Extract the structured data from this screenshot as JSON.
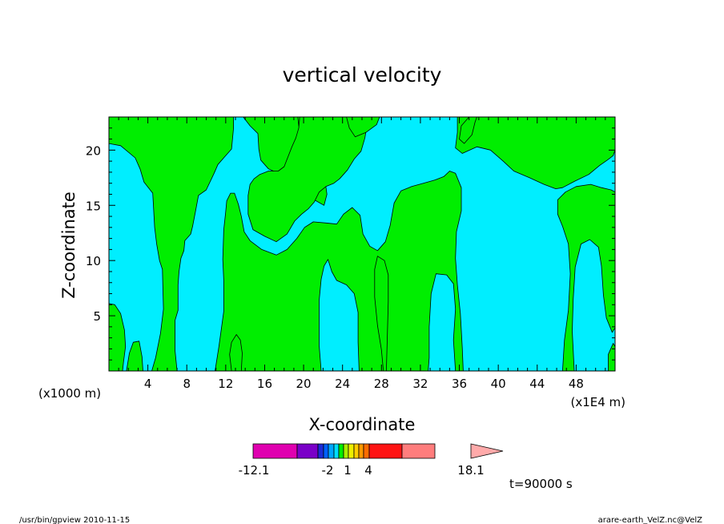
{
  "chart_data": {
    "type": "heatmap",
    "title": "vertical velocity",
    "xlabel": "X-coordinate",
    "ylabel": "Z-coordinate",
    "x_scale_label": "(x1000 m)",
    "x_unit_label": "(x1E4 m)",
    "xlim": [
      0,
      52
    ],
    "ylim": [
      0,
      23
    ],
    "x_ticks": [
      "4",
      "8",
      "12",
      "16",
      "20",
      "24",
      "28",
      "32",
      "36",
      "40",
      "44",
      "48"
    ],
    "y_ticks": [
      "5",
      "10",
      "15",
      "20"
    ],
    "x_tick_values": [
      4,
      8,
      12,
      16,
      20,
      24,
      28,
      32,
      36,
      40,
      44,
      48
    ],
    "y_tick_values": [
      5,
      10,
      15,
      20
    ],
    "background_color": "#00eeff",
    "region_color": "#00ee00",
    "regions": [
      {
        "name": "positive",
        "points": [
          [
            0,
            23
          ],
          [
            0,
            20.6
          ],
          [
            1.2,
            20.4
          ],
          [
            2.7,
            19.3
          ],
          [
            3.2,
            18.3
          ],
          [
            3.6,
            17.1
          ],
          [
            4.5,
            16.1
          ],
          [
            4.7,
            13.0
          ],
          [
            4.9,
            11.5
          ],
          [
            5.2,
            10.0
          ],
          [
            5.5,
            9.2
          ],
          [
            5.6,
            5.6
          ],
          [
            5.3,
            3.4
          ],
          [
            4.8,
            1.2
          ],
          [
            4.4,
            0
          ],
          [
            7.0,
            0
          ],
          [
            6.8,
            1.8
          ],
          [
            6.8,
            4.6
          ],
          [
            7.1,
            5.5
          ],
          [
            7.1,
            7.8
          ],
          [
            7.2,
            9.0
          ],
          [
            7.4,
            10.2
          ],
          [
            7.7,
            10.9
          ],
          [
            7.8,
            11.8
          ],
          [
            8.4,
            12.4
          ],
          [
            8.6,
            13.1
          ],
          [
            8.9,
            14.5
          ],
          [
            9.2,
            15.9
          ],
          [
            10.0,
            16.4
          ],
          [
            10.8,
            17.9
          ],
          [
            11.2,
            18.7
          ],
          [
            11.9,
            19.4
          ],
          [
            12.6,
            20.1
          ],
          [
            12.8,
            22.0
          ],
          [
            12.8,
            23.0
          ]
        ]
      },
      {
        "name": "positive",
        "points": [
          [
            13.8,
            23
          ],
          [
            14.5,
            22.2
          ],
          [
            15.3,
            21.5
          ],
          [
            15.4,
            20.1
          ],
          [
            15.6,
            19.1
          ],
          [
            16.4,
            18.3
          ],
          [
            17.4,
            17.9
          ],
          [
            18.7,
            17.3
          ],
          [
            19.9,
            16.6
          ],
          [
            20.9,
            15.6
          ],
          [
            22.1,
            15.0
          ],
          [
            22.4,
            16.0
          ],
          [
            22.2,
            17.3
          ],
          [
            21.9,
            18.4
          ],
          [
            21.6,
            19.5
          ],
          [
            21.5,
            20.8
          ],
          [
            21.2,
            22.1
          ],
          [
            21.0,
            23
          ]
        ]
      },
      {
        "name": "positive",
        "points": [
          [
            19.4,
            23
          ],
          [
            19.5,
            22.2
          ],
          [
            20.0,
            21.0
          ],
          [
            20.8,
            20.2
          ],
          [
            21.5,
            19.6
          ],
          [
            21.8,
            19.0
          ],
          [
            22.1,
            18.4
          ],
          [
            22.6,
            19.2
          ],
          [
            23.1,
            20.2
          ],
          [
            23.6,
            21.2
          ],
          [
            24.0,
            22.3
          ],
          [
            24.2,
            23
          ]
        ]
      },
      {
        "name": "positive",
        "points": [
          [
            26.4,
            23
          ],
          [
            26.5,
            22.2
          ],
          [
            26.3,
            21.1
          ],
          [
            25.9,
            19.9
          ],
          [
            25.2,
            19.2
          ],
          [
            24.5,
            18.2
          ],
          [
            23.7,
            17.4
          ],
          [
            23.1,
            17.0
          ],
          [
            22.3,
            16.7
          ],
          [
            21.6,
            16.2
          ],
          [
            21.1,
            15.3
          ],
          [
            20.5,
            14.7
          ],
          [
            19.8,
            14.2
          ],
          [
            19.1,
            13.6
          ],
          [
            18.3,
            12.4
          ],
          [
            17.2,
            11.7
          ],
          [
            16.0,
            12.2
          ],
          [
            14.8,
            12.8
          ],
          [
            14.3,
            14.2
          ],
          [
            14.3,
            15.9
          ],
          [
            14.5,
            16.9
          ],
          [
            14.9,
            17.4
          ],
          [
            15.5,
            17.8
          ],
          [
            16.4,
            18.1
          ],
          [
            17.4,
            18.1
          ],
          [
            18.0,
            18.5
          ],
          [
            18.8,
            20.3
          ],
          [
            19.2,
            21.1
          ],
          [
            19.5,
            22.0
          ],
          [
            19.6,
            23
          ]
        ]
      },
      {
        "name": "positive",
        "points": [
          [
            24.4,
            23
          ],
          [
            24.7,
            22.0
          ],
          [
            25.3,
            21.2
          ],
          [
            26.4,
            21.6
          ],
          [
            27.5,
            22.3
          ],
          [
            27.8,
            23
          ]
        ]
      },
      {
        "name": "positive",
        "points": [
          [
            35.8,
            23
          ],
          [
            35.8,
            21.6
          ],
          [
            35.6,
            20.2
          ],
          [
            36.3,
            19.7
          ],
          [
            37.8,
            20.3
          ],
          [
            39.2,
            20.0
          ],
          [
            40.5,
            19.0
          ],
          [
            41.6,
            18.1
          ],
          [
            43.2,
            17.5
          ],
          [
            44.7,
            16.9
          ],
          [
            45.9,
            16.5
          ],
          [
            46.6,
            16.6
          ],
          [
            47.9,
            17.2
          ],
          [
            49.3,
            17.8
          ],
          [
            50.4,
            18.6
          ],
          [
            51.2,
            19.1
          ],
          [
            51.8,
            19.5
          ],
          [
            52,
            20.0
          ],
          [
            52,
            23
          ]
        ]
      },
      {
        "name": "positive",
        "points": [
          [
            10.9,
            0
          ],
          [
            11.3,
            2.2
          ],
          [
            11.8,
            5.4
          ],
          [
            11.8,
            8.2
          ],
          [
            11.7,
            10.1
          ],
          [
            11.8,
            12.8
          ],
          [
            12.0,
            14.4
          ],
          [
            12.1,
            15.4
          ],
          [
            12.5,
            16.1
          ],
          [
            12.9,
            16.1
          ],
          [
            13.3,
            15.1
          ],
          [
            13.6,
            14.0
          ],
          [
            13.9,
            12.6
          ],
          [
            14.5,
            11.8
          ],
          [
            15.7,
            11.0
          ],
          [
            17.2,
            10.5
          ],
          [
            18.3,
            11.0
          ],
          [
            19.3,
            12.0
          ],
          [
            20.1,
            13.0
          ],
          [
            21.0,
            13.5
          ],
          [
            22.3,
            13.4
          ],
          [
            23.4,
            13.3
          ],
          [
            24.1,
            14.2
          ],
          [
            25.0,
            14.8
          ],
          [
            25.8,
            14.1
          ],
          [
            26.1,
            12.4
          ],
          [
            26.8,
            11.3
          ],
          [
            27.6,
            10.9
          ],
          [
            28.4,
            11.7
          ],
          [
            28.9,
            13.2
          ],
          [
            29.3,
            15.2
          ],
          [
            30.0,
            16.3
          ],
          [
            31.1,
            16.7
          ],
          [
            32.3,
            17.0
          ],
          [
            33.5,
            17.3
          ],
          [
            34.4,
            17.6
          ],
          [
            35.0,
            18.1
          ],
          [
            35.6,
            17.9
          ],
          [
            36.2,
            16.6
          ],
          [
            36.2,
            14.5
          ],
          [
            35.7,
            12.6
          ],
          [
            35.6,
            10.2
          ],
          [
            35.8,
            7.8
          ],
          [
            36.1,
            5.2
          ],
          [
            36.3,
            2.1
          ],
          [
            36.4,
            0
          ],
          [
            35.6,
            0
          ],
          [
            35.4,
            2.8
          ],
          [
            35.6,
            5.6
          ],
          [
            35.4,
            7.9
          ],
          [
            34.7,
            8.7
          ],
          [
            33.6,
            8.8
          ],
          [
            33.1,
            7.0
          ],
          [
            32.9,
            4.0
          ],
          [
            32.9,
            1.2
          ],
          [
            32.8,
            0
          ],
          [
            25.7,
            0
          ],
          [
            25.6,
            2.6
          ],
          [
            25.6,
            5.3
          ],
          [
            25.2,
            7.0
          ],
          [
            24.4,
            7.8
          ],
          [
            23.4,
            8.2
          ],
          [
            22.9,
            9.0
          ],
          [
            22.5,
            10.1
          ],
          [
            22.1,
            9.5
          ],
          [
            21.8,
            8.3
          ],
          [
            21.6,
            6.4
          ],
          [
            21.6,
            4.3
          ],
          [
            21.6,
            2.3
          ],
          [
            21.8,
            0
          ]
        ]
      },
      {
        "name": "positive",
        "points": [
          [
            28.5,
            0
          ],
          [
            28.6,
            3.1
          ],
          [
            28.7,
            6.3
          ],
          [
            28.7,
            8.7
          ],
          [
            28.3,
            10.0
          ],
          [
            27.6,
            10.4
          ],
          [
            27.3,
            9.2
          ],
          [
            27.3,
            6.7
          ],
          [
            27.6,
            4.1
          ],
          [
            28.0,
            1.9
          ],
          [
            28.2,
            0
          ]
        ]
      },
      {
        "name": "positive",
        "points": [
          [
            46.6,
            0
          ],
          [
            46.8,
            2.8
          ],
          [
            47.2,
            5.5
          ],
          [
            47.4,
            8.8
          ],
          [
            47.2,
            11.5
          ],
          [
            46.6,
            13.1
          ],
          [
            46.1,
            14.2
          ],
          [
            46.1,
            15.5
          ],
          [
            46.9,
            16.2
          ],
          [
            48.0,
            16.7
          ],
          [
            49.5,
            16.9
          ],
          [
            50.6,
            16.6
          ],
          [
            51.6,
            16.4
          ],
          [
            52,
            16.2
          ],
          [
            52,
            3.9
          ],
          [
            51.7,
            3.5
          ],
          [
            51.1,
            4.8
          ],
          [
            50.8,
            6.9
          ],
          [
            50.6,
            9.5
          ],
          [
            50.3,
            11.2
          ],
          [
            49.4,
            11.9
          ],
          [
            48.5,
            11.5
          ],
          [
            47.9,
            9.4
          ],
          [
            47.7,
            6.5
          ],
          [
            47.6,
            3.6
          ],
          [
            47.8,
            0
          ]
        ]
      },
      {
        "name": "positive",
        "points": [
          [
            0,
            6.1
          ],
          [
            0.6,
            6.0
          ],
          [
            1.2,
            5.2
          ],
          [
            1.6,
            3.7
          ],
          [
            1.7,
            2.2
          ],
          [
            1.5,
            0.8
          ],
          [
            1.4,
            0
          ],
          [
            0,
            0
          ]
        ]
      },
      {
        "name": "positive",
        "points": [
          [
            1.8,
            0
          ],
          [
            2.1,
            1.6
          ],
          [
            2.5,
            2.6
          ],
          [
            3.1,
            2.7
          ],
          [
            3.4,
            1.3
          ],
          [
            3.5,
            0
          ]
        ]
      },
      {
        "name": "positive",
        "points": [
          [
            12.6,
            0
          ],
          [
            12.4,
            1.5
          ],
          [
            12.6,
            2.6
          ],
          [
            13.1,
            3.3
          ],
          [
            13.5,
            2.8
          ],
          [
            13.7,
            1.6
          ],
          [
            13.6,
            0
          ]
        ]
      },
      {
        "name": "positive",
        "points": [
          [
            51.3,
            0
          ],
          [
            51.3,
            1.5
          ],
          [
            51.8,
            2.5
          ],
          [
            52,
            2.2
          ],
          [
            52,
            0
          ]
        ]
      },
      {
        "name": "positive",
        "points": [
          [
            37.0,
            23
          ],
          [
            36.2,
            22.2
          ],
          [
            36.0,
            21.0
          ],
          [
            36.5,
            20.6
          ],
          [
            37.3,
            21.4
          ],
          [
            37.6,
            22.5
          ],
          [
            37.8,
            23
          ]
        ]
      }
    ],
    "colorbar": {
      "colors": [
        "#e000b0",
        "#7a00c8",
        "#1c2bd6",
        "#0060ff",
        "#00a6ff",
        "#00ddff",
        "#00ee00",
        "#aaee00",
        "#eeee00",
        "#ffcc00",
        "#ff9800",
        "#ff6c00",
        "#ff1414",
        "#ff7d7d",
        "#ffaaaa"
      ],
      "labels": [
        "-12.1",
        "-2",
        "1",
        "4",
        "18.1"
      ]
    },
    "time_label": "t=90000 s"
  },
  "footer": {
    "left": "/usr/bin/gpview   2010-11-15",
    "right": "arare-earth_VelZ.nc@VelZ"
  }
}
